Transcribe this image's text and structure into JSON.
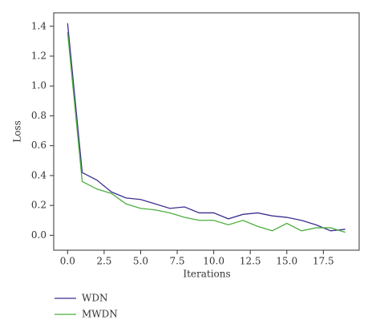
{
  "chart_data": {
    "type": "line",
    "x": [
      0,
      1,
      2,
      3,
      4,
      5,
      6,
      7,
      8,
      9,
      10,
      11,
      12,
      13,
      14,
      15,
      16,
      17,
      18,
      19
    ],
    "series": [
      {
        "name": "WDN",
        "color": "#3b2f91",
        "values": [
          1.42,
          0.42,
          0.37,
          0.29,
          0.25,
          0.24,
          0.21,
          0.18,
          0.19,
          0.15,
          0.15,
          0.11,
          0.14,
          0.15,
          0.13,
          0.12,
          0.1,
          0.07,
          0.03,
          0.04
        ]
      },
      {
        "name": "MWDN",
        "color": "#4caf3f",
        "values": [
          1.36,
          0.36,
          0.31,
          0.28,
          0.21,
          0.18,
          0.17,
          0.15,
          0.12,
          0.1,
          0.1,
          0.07,
          0.1,
          0.06,
          0.03,
          0.08,
          0.03,
          0.05,
          0.05,
          0.02
        ]
      }
    ],
    "xlabel": "Iterations",
    "ylabel": "Loss",
    "xlim": [
      -0.95,
      19.95
    ],
    "ylim": [
      -0.1,
      1.49
    ],
    "xticks": [
      {
        "value": 0,
        "label": "0.0"
      },
      2.5,
      {
        "value": 5,
        "label": "5.0"
      },
      7.5,
      {
        "value": 10,
        "label": "10.0"
      },
      12.5,
      {
        "value": 15,
        "label": "15.0"
      },
      17.5
    ],
    "yticks": [
      {
        "value": 0,
        "label": "0.0"
      },
      0.2,
      0.4,
      0.6,
      0.8,
      {
        "value": 1,
        "label": "1.0"
      },
      1.2,
      1.4
    ],
    "grid": false,
    "legend": "below-left"
  }
}
